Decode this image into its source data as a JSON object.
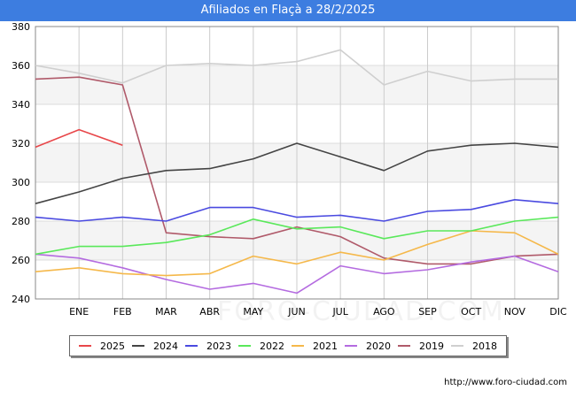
{
  "title": "Afiliados en Flaçà a 28/2/2025",
  "source": "http://www.foro-ciudad.com",
  "watermark": "FORO-CIUDAD.COM",
  "chart_data": {
    "type": "line",
    "categories": [
      "",
      "ENE",
      "FEB",
      "MAR",
      "ABR",
      "MAY",
      "JUN",
      "JUL",
      "AGO",
      "SEP",
      "OCT",
      "NOV",
      "DIC"
    ],
    "ylim": [
      240,
      380
    ],
    "yticks": [
      240,
      260,
      280,
      300,
      320,
      340,
      360,
      380
    ],
    "grid": true,
    "legend_position": "bottom",
    "series": [
      {
        "name": "2025",
        "color": "#e8474a",
        "values": [
          318,
          327,
          319,
          null,
          null,
          null,
          null,
          null,
          null,
          null,
          null,
          null,
          null
        ]
      },
      {
        "name": "2024",
        "color": "#444444",
        "values": [
          289,
          295,
          302,
          306,
          307,
          312,
          320,
          313,
          306,
          316,
          319,
          320,
          318
        ]
      },
      {
        "name": "2023",
        "color": "#4a4ae0",
        "values": [
          282,
          280,
          282,
          280,
          287,
          287,
          282,
          283,
          280,
          285,
          286,
          291,
          289
        ]
      },
      {
        "name": "2022",
        "color": "#59e85a",
        "values": [
          263,
          267,
          267,
          269,
          273,
          281,
          276,
          277,
          271,
          275,
          275,
          280,
          282
        ]
      },
      {
        "name": "2021",
        "color": "#f5b84a",
        "values": [
          254,
          256,
          253,
          252,
          253,
          262,
          258,
          264,
          260,
          268,
          275,
          274,
          263
        ]
      },
      {
        "name": "2020",
        "color": "#b46be0",
        "values": [
          263,
          261,
          256,
          250,
          245,
          248,
          243,
          257,
          253,
          255,
          259,
          262,
          254
        ]
      },
      {
        "name": "2019",
        "color": "#b05a6a",
        "values": [
          353,
          354,
          350,
          274,
          272,
          271,
          277,
          272,
          261,
          258,
          258,
          262,
          263
        ]
      },
      {
        "name": "2018",
        "color": "#cfcfcf",
        "values": [
          360,
          356,
          351,
          360,
          361,
          360,
          362,
          368,
          350,
          357,
          352,
          353,
          353
        ]
      }
    ]
  }
}
